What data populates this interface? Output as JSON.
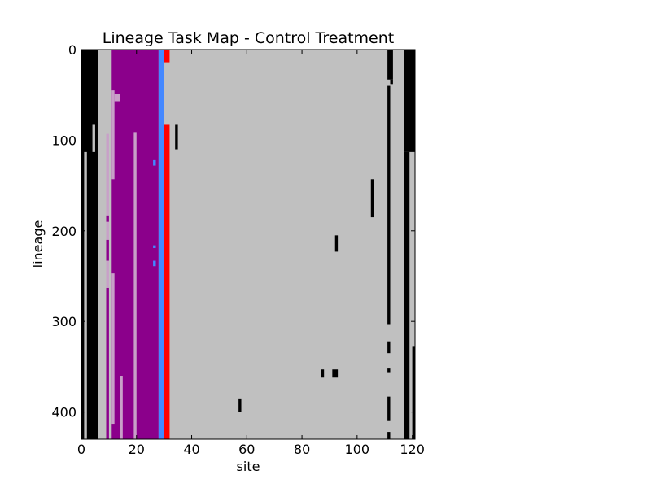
{
  "chart_data": {
    "type": "heatmap",
    "title": "Lineage Task Map - Control Treatment",
    "xlabel": "site",
    "ylabel": "lineage",
    "xlim": [
      0,
      121
    ],
    "ylim": [
      430,
      0
    ],
    "xticks": [
      0,
      20,
      40,
      60,
      80,
      100,
      120
    ],
    "yticks": [
      0,
      100,
      200,
      300,
      400
    ],
    "background_color": "#c0c0c0",
    "colors": {
      "background": "#c0c0c0",
      "black": "#000000",
      "purple": "#8b008b",
      "light_purple": "#c8a0c8",
      "blue": "#4488ff",
      "red": "#ff0000"
    },
    "cells": [
      {
        "x0": 0,
        "x1": 6,
        "y0": 0,
        "y1": 430,
        "color": "black"
      },
      {
        "x0": 1,
        "x1": 2,
        "y0": 113,
        "y1": 430,
        "color": "background"
      },
      {
        "x0": 4,
        "x1": 5,
        "y0": 83,
        "y1": 113,
        "color": "background"
      },
      {
        "x0": 6,
        "x1": 11,
        "y0": 0,
        "y1": 430,
        "color": "background"
      },
      {
        "x0": 9,
        "x1": 10,
        "y0": 93,
        "y1": 430,
        "color": "light_purple"
      },
      {
        "x0": 9,
        "x1": 10,
        "y0": 183,
        "y1": 190,
        "color": "purple"
      },
      {
        "x0": 9,
        "x1": 10,
        "y0": 210,
        "y1": 233,
        "color": "purple"
      },
      {
        "x0": 9,
        "x1": 10,
        "y0": 263,
        "y1": 430,
        "color": "purple"
      },
      {
        "x0": 11,
        "x1": 28,
        "y0": 0,
        "y1": 430,
        "color": "purple"
      },
      {
        "x0": 11,
        "x1": 12,
        "y0": 45,
        "y1": 143,
        "color": "light_purple"
      },
      {
        "x0": 11,
        "x1": 12,
        "y0": 247,
        "y1": 413,
        "color": "light_purple"
      },
      {
        "x0": 12,
        "x1": 14,
        "y0": 49,
        "y1": 57,
        "color": "light_purple"
      },
      {
        "x0": 14,
        "x1": 15,
        "y0": 360,
        "y1": 430,
        "color": "light_purple"
      },
      {
        "x0": 19,
        "x1": 20,
        "y0": 91,
        "y1": 430,
        "color": "light_purple"
      },
      {
        "x0": 26,
        "x1": 27,
        "y0": 122,
        "y1": 128,
        "color": "blue"
      },
      {
        "x0": 26,
        "x1": 27,
        "y0": 216,
        "y1": 219,
        "color": "blue"
      },
      {
        "x0": 26,
        "x1": 27,
        "y0": 233,
        "y1": 239,
        "color": "blue"
      },
      {
        "x0": 28,
        "x1": 30,
        "y0": 0,
        "y1": 430,
        "color": "blue"
      },
      {
        "x0": 30,
        "x1": 32,
        "y0": 0,
        "y1": 14,
        "color": "red"
      },
      {
        "x0": 30,
        "x1": 32,
        "y0": 83,
        "y1": 430,
        "color": "red"
      },
      {
        "x0": 34,
        "x1": 35,
        "y0": 83,
        "y1": 110,
        "color": "black"
      },
      {
        "x0": 105,
        "x1": 106,
        "y0": 143,
        "y1": 185,
        "color": "black"
      },
      {
        "x0": 92,
        "x1": 93,
        "y0": 205,
        "y1": 223,
        "color": "black"
      },
      {
        "x0": 87,
        "x1": 88,
        "y0": 353,
        "y1": 362,
        "color": "black"
      },
      {
        "x0": 91,
        "x1": 93,
        "y0": 353,
        "y1": 362,
        "color": "black"
      },
      {
        "x0": 57,
        "x1": 58,
        "y0": 385,
        "y1": 400,
        "color": "black"
      },
      {
        "x0": 111,
        "x1": 113,
        "y0": 0,
        "y1": 33,
        "color": "black"
      },
      {
        "x0": 112,
        "x1": 113,
        "y0": 33,
        "y1": 38,
        "color": "black"
      },
      {
        "x0": 111,
        "x1": 112,
        "y0": 40,
        "y1": 303,
        "color": "black"
      },
      {
        "x0": 111,
        "x1": 112,
        "y0": 322,
        "y1": 335,
        "color": "black"
      },
      {
        "x0": 111,
        "x1": 112,
        "y0": 352,
        "y1": 356,
        "color": "black"
      },
      {
        "x0": 111,
        "x1": 112,
        "y0": 383,
        "y1": 410,
        "color": "black"
      },
      {
        "x0": 111,
        "x1": 112,
        "y0": 422,
        "y1": 430,
        "color": "black"
      },
      {
        "x0": 117,
        "x1": 121,
        "y0": 0,
        "y1": 113,
        "color": "black"
      },
      {
        "x0": 117,
        "x1": 119,
        "y0": 113,
        "y1": 430,
        "color": "black"
      },
      {
        "x0": 120,
        "x1": 121,
        "y0": 328,
        "y1": 430,
        "color": "black"
      }
    ]
  }
}
